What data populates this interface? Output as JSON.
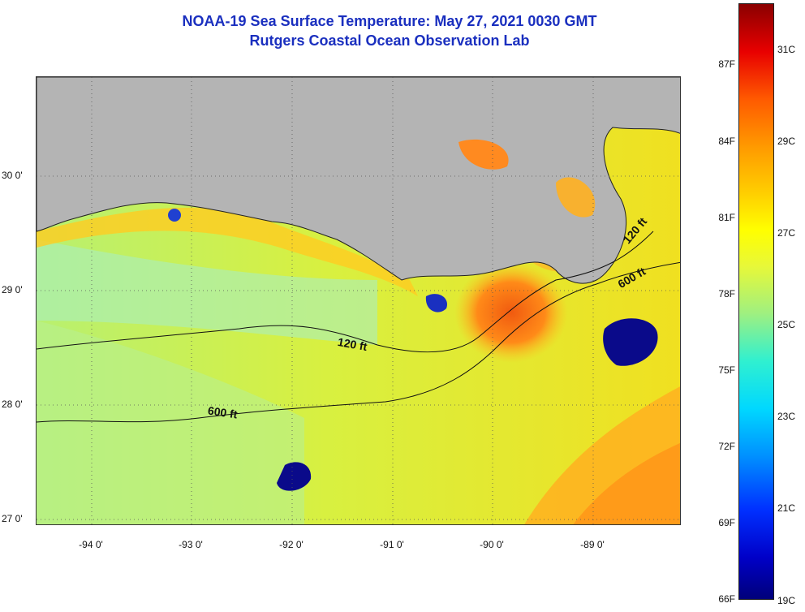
{
  "title": {
    "line1": "NOAA-19 Sea Surface Temperature:  May 27, 2021 0030 GMT",
    "line2": "Rutgers Coastal Ocean Observation Lab"
  },
  "map": {
    "latitude_labels": [
      "30 0'",
      "29 0'",
      "28 0'",
      "27 0'"
    ],
    "longitude_labels": [
      "-94 0'",
      "-93 0'",
      "-92 0'",
      "-91 0'",
      "-90 0'",
      "-89 0'"
    ],
    "contour_labels": [
      "120 ft",
      "120 ft",
      "600 ft",
      "600 ft"
    ],
    "land_color": "#b4b4b4",
    "sea_base_color": "#d6ee3a"
  },
  "colorbar": {
    "fahrenheit_labels": [
      "87F",
      "84F",
      "81F",
      "78F",
      "75F",
      "72F",
      "69F",
      "66F"
    ],
    "celsius_labels": [
      "31C",
      "29C",
      "27C",
      "25C",
      "23C",
      "21C",
      "19C"
    ]
  }
}
